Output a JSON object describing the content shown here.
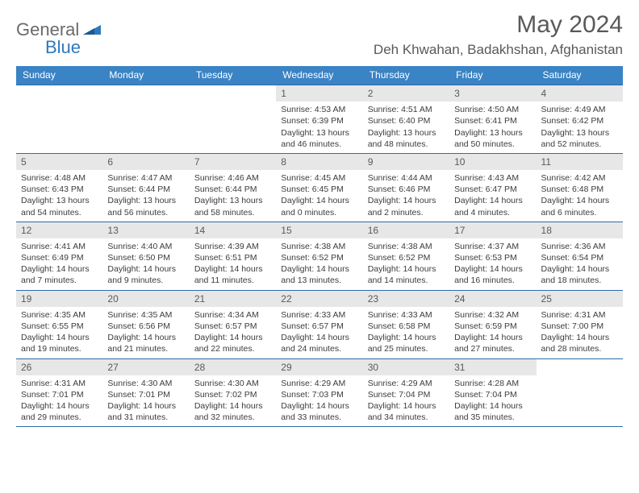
{
  "logo": {
    "text1": "General",
    "text2": "Blue"
  },
  "title": "May 2024",
  "location": "Deh Khwahan, Badakhshan, Afghanistan",
  "colors": {
    "header_bg": "#3a83c4",
    "header_text": "#ffffff",
    "daynum_bg": "#e7e7e7",
    "rule": "#2f6ca8",
    "logo_blue": "#2f78ba",
    "logo_grey": "#6b6b6b",
    "title_color": "#595959"
  },
  "weekdays": [
    "Sunday",
    "Monday",
    "Tuesday",
    "Wednesday",
    "Thursday",
    "Friday",
    "Saturday"
  ],
  "weeks": [
    [
      null,
      null,
      null,
      {
        "d": "1",
        "sr": "4:53 AM",
        "ss": "6:39 PM",
        "dl1": "13 hours",
        "dl2": "and 46 minutes."
      },
      {
        "d": "2",
        "sr": "4:51 AM",
        "ss": "6:40 PM",
        "dl1": "13 hours",
        "dl2": "and 48 minutes."
      },
      {
        "d": "3",
        "sr": "4:50 AM",
        "ss": "6:41 PM",
        "dl1": "13 hours",
        "dl2": "and 50 minutes."
      },
      {
        "d": "4",
        "sr": "4:49 AM",
        "ss": "6:42 PM",
        "dl1": "13 hours",
        "dl2": "and 52 minutes."
      }
    ],
    [
      {
        "d": "5",
        "sr": "4:48 AM",
        "ss": "6:43 PM",
        "dl1": "13 hours",
        "dl2": "and 54 minutes."
      },
      {
        "d": "6",
        "sr": "4:47 AM",
        "ss": "6:44 PM",
        "dl1": "13 hours",
        "dl2": "and 56 minutes."
      },
      {
        "d": "7",
        "sr": "4:46 AM",
        "ss": "6:44 PM",
        "dl1": "13 hours",
        "dl2": "and 58 minutes."
      },
      {
        "d": "8",
        "sr": "4:45 AM",
        "ss": "6:45 PM",
        "dl1": "14 hours",
        "dl2": "and 0 minutes."
      },
      {
        "d": "9",
        "sr": "4:44 AM",
        "ss": "6:46 PM",
        "dl1": "14 hours",
        "dl2": "and 2 minutes."
      },
      {
        "d": "10",
        "sr": "4:43 AM",
        "ss": "6:47 PM",
        "dl1": "14 hours",
        "dl2": "and 4 minutes."
      },
      {
        "d": "11",
        "sr": "4:42 AM",
        "ss": "6:48 PM",
        "dl1": "14 hours",
        "dl2": "and 6 minutes."
      }
    ],
    [
      {
        "d": "12",
        "sr": "4:41 AM",
        "ss": "6:49 PM",
        "dl1": "14 hours",
        "dl2": "and 7 minutes."
      },
      {
        "d": "13",
        "sr": "4:40 AM",
        "ss": "6:50 PM",
        "dl1": "14 hours",
        "dl2": "and 9 minutes."
      },
      {
        "d": "14",
        "sr": "4:39 AM",
        "ss": "6:51 PM",
        "dl1": "14 hours",
        "dl2": "and 11 minutes."
      },
      {
        "d": "15",
        "sr": "4:38 AM",
        "ss": "6:52 PM",
        "dl1": "14 hours",
        "dl2": "and 13 minutes."
      },
      {
        "d": "16",
        "sr": "4:38 AM",
        "ss": "6:52 PM",
        "dl1": "14 hours",
        "dl2": "and 14 minutes."
      },
      {
        "d": "17",
        "sr": "4:37 AM",
        "ss": "6:53 PM",
        "dl1": "14 hours",
        "dl2": "and 16 minutes."
      },
      {
        "d": "18",
        "sr": "4:36 AM",
        "ss": "6:54 PM",
        "dl1": "14 hours",
        "dl2": "and 18 minutes."
      }
    ],
    [
      {
        "d": "19",
        "sr": "4:35 AM",
        "ss": "6:55 PM",
        "dl1": "14 hours",
        "dl2": "and 19 minutes."
      },
      {
        "d": "20",
        "sr": "4:35 AM",
        "ss": "6:56 PM",
        "dl1": "14 hours",
        "dl2": "and 21 minutes."
      },
      {
        "d": "21",
        "sr": "4:34 AM",
        "ss": "6:57 PM",
        "dl1": "14 hours",
        "dl2": "and 22 minutes."
      },
      {
        "d": "22",
        "sr": "4:33 AM",
        "ss": "6:57 PM",
        "dl1": "14 hours",
        "dl2": "and 24 minutes."
      },
      {
        "d": "23",
        "sr": "4:33 AM",
        "ss": "6:58 PM",
        "dl1": "14 hours",
        "dl2": "and 25 minutes."
      },
      {
        "d": "24",
        "sr": "4:32 AM",
        "ss": "6:59 PM",
        "dl1": "14 hours",
        "dl2": "and 27 minutes."
      },
      {
        "d": "25",
        "sr": "4:31 AM",
        "ss": "7:00 PM",
        "dl1": "14 hours",
        "dl2": "and 28 minutes."
      }
    ],
    [
      {
        "d": "26",
        "sr": "4:31 AM",
        "ss": "7:01 PM",
        "dl1": "14 hours",
        "dl2": "and 29 minutes."
      },
      {
        "d": "27",
        "sr": "4:30 AM",
        "ss": "7:01 PM",
        "dl1": "14 hours",
        "dl2": "and 31 minutes."
      },
      {
        "d": "28",
        "sr": "4:30 AM",
        "ss": "7:02 PM",
        "dl1": "14 hours",
        "dl2": "and 32 minutes."
      },
      {
        "d": "29",
        "sr": "4:29 AM",
        "ss": "7:03 PM",
        "dl1": "14 hours",
        "dl2": "and 33 minutes."
      },
      {
        "d": "30",
        "sr": "4:29 AM",
        "ss": "7:04 PM",
        "dl1": "14 hours",
        "dl2": "and 34 minutes."
      },
      {
        "d": "31",
        "sr": "4:28 AM",
        "ss": "7:04 PM",
        "dl1": "14 hours",
        "dl2": "and 35 minutes."
      },
      null
    ]
  ],
  "labels": {
    "sunrise": "Sunrise:",
    "sunset": "Sunset:",
    "daylight": "Daylight:"
  }
}
